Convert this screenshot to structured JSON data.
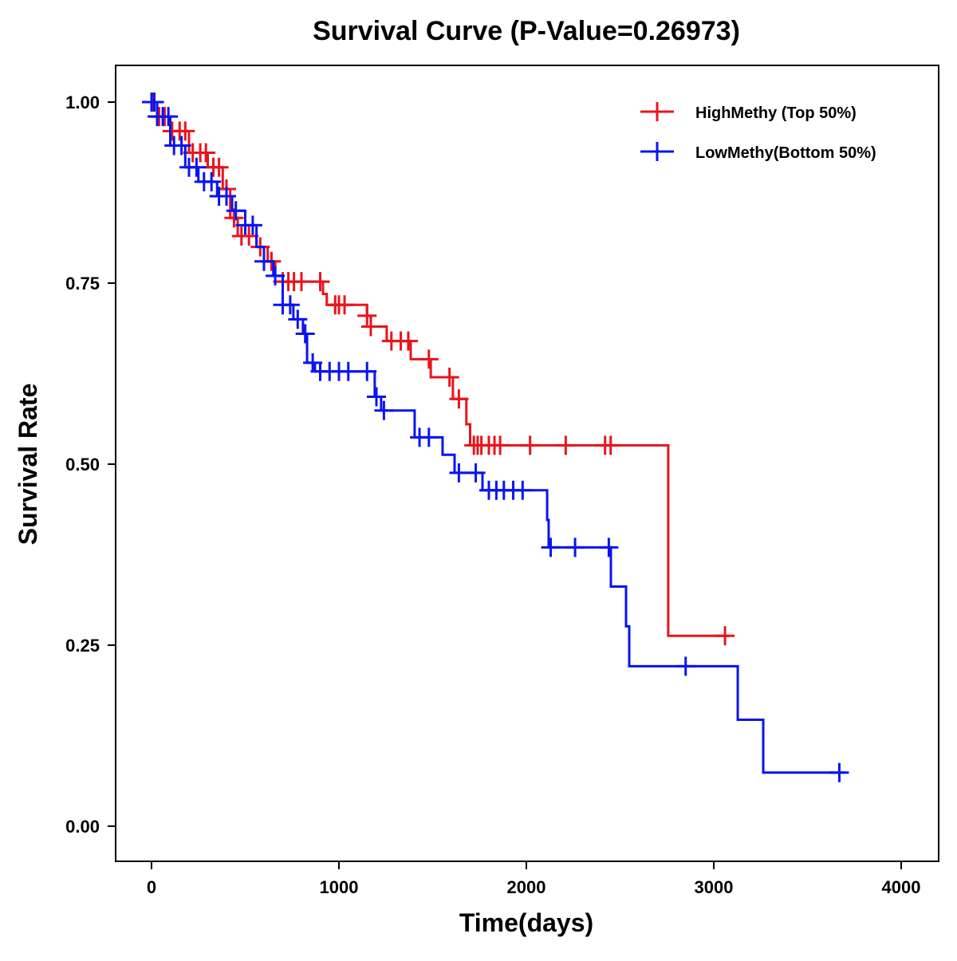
{
  "chart_data": {
    "type": "line",
    "subtype": "kaplan-meier",
    "title": "Survival Curve (P-Value=0.26973)",
    "xlabel": "Time(days)",
    "ylabel": "Survival Rate",
    "xlim": [
      -200,
      4200
    ],
    "ylim": [
      -0.04,
      1.05
    ],
    "xticks": [
      0,
      1000,
      2000,
      3000,
      4000
    ],
    "xtick_labels": [
      "0",
      "1000",
      "2000",
      "3000",
      "4000"
    ],
    "yticks": [
      0,
      0.25,
      0.5,
      0.75,
      1
    ],
    "ytick_labels": [
      "0.00",
      "0.25",
      "0.50",
      "0.75",
      "1.00"
    ],
    "legend_position": "top-right",
    "grid": false,
    "series": [
      {
        "name": "HighMethy (Top 50%)",
        "color": "#e8141c",
        "steps": [
          [
            0,
            1.0
          ],
          [
            30,
            0.98
          ],
          [
            100,
            0.96
          ],
          [
            200,
            0.93
          ],
          [
            300,
            0.91
          ],
          [
            380,
            0.88
          ],
          [
            420,
            0.84
          ],
          [
            460,
            0.815
          ],
          [
            560,
            0.8
          ],
          [
            620,
            0.78
          ],
          [
            660,
            0.76
          ],
          [
            700,
            0.752
          ],
          [
            915,
            0.735
          ],
          [
            935,
            0.72
          ],
          [
            1150,
            0.705
          ],
          [
            1170,
            0.69
          ],
          [
            1255,
            0.67
          ],
          [
            1383,
            0.645
          ],
          [
            1490,
            0.62
          ],
          [
            1608,
            0.59
          ],
          [
            1680,
            0.555
          ],
          [
            1700,
            0.526
          ],
          [
            2757,
            0.263
          ],
          [
            3080,
            0.263
          ]
        ],
        "censored": [
          10,
          40,
          70,
          110,
          150,
          180,
          220,
          260,
          290,
          330,
          360,
          400,
          440,
          480,
          520,
          580,
          640,
          700,
          730,
          760,
          800,
          900,
          980,
          1000,
          1030,
          1150,
          1170,
          1280,
          1330,
          1370,
          1480,
          1590,
          1640,
          1720,
          1740,
          1760,
          1800,
          1830,
          1860,
          2020,
          2210,
          2420,
          2450,
          3060
        ]
      },
      {
        "name": "LowMethy(Bottom 50%)",
        "color": "#0a14f0",
        "steps": [
          [
            0,
            1.0
          ],
          [
            30,
            0.98
          ],
          [
            100,
            0.94
          ],
          [
            180,
            0.91
          ],
          [
            250,
            0.89
          ],
          [
            350,
            0.87
          ],
          [
            430,
            0.85
          ],
          [
            500,
            0.83
          ],
          [
            560,
            0.8
          ],
          [
            600,
            0.78
          ],
          [
            650,
            0.76
          ],
          [
            700,
            0.72
          ],
          [
            757,
            0.7
          ],
          [
            808,
            0.68
          ],
          [
            830,
            0.64
          ],
          [
            872,
            0.628
          ],
          [
            1191,
            0.593
          ],
          [
            1225,
            0.574
          ],
          [
            1404,
            0.537
          ],
          [
            1553,
            0.513
          ],
          [
            1617,
            0.488
          ],
          [
            1766,
            0.464
          ],
          [
            2111,
            0.423
          ],
          [
            2119,
            0.385
          ],
          [
            2451,
            0.331
          ],
          [
            2532,
            0.276
          ],
          [
            2549,
            0.221
          ],
          [
            3128,
            0.147
          ],
          [
            3264,
            0.074
          ],
          [
            3700,
            0.074
          ]
        ],
        "censored": [
          0,
          15,
          30,
          60,
          90,
          120,
          160,
          200,
          240,
          280,
          320,
          360,
          400,
          450,
          500,
          540,
          600,
          660,
          700,
          740,
          780,
          820,
          860,
          900,
          950,
          1000,
          1050,
          1150,
          1200,
          1240,
          1430,
          1480,
          1640,
          1730,
          1800,
          1840,
          1880,
          1930,
          1980,
          2130,
          2260,
          2440,
          2850,
          3670
        ]
      }
    ]
  }
}
